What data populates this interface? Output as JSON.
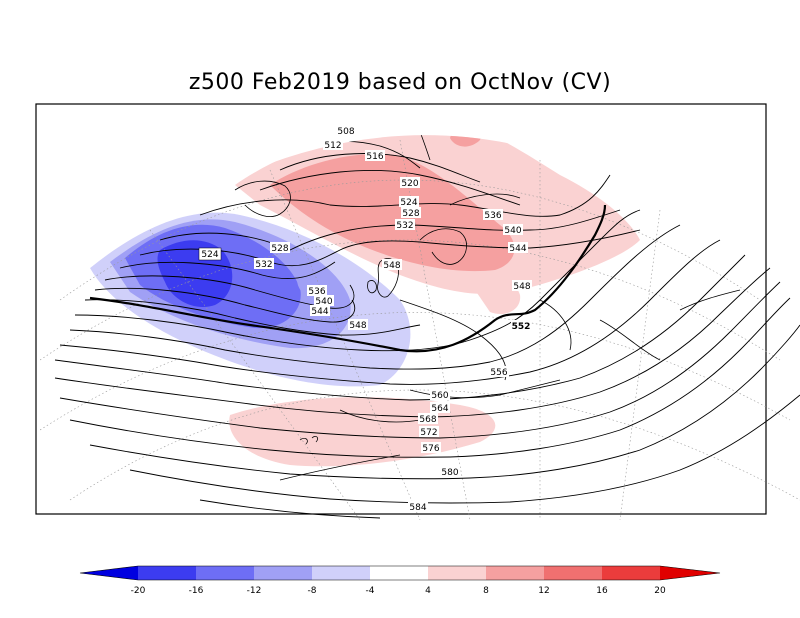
{
  "title": "z500 Feb2019 based on OctNov (CV)",
  "contour_labels": [
    "508",
    "512",
    "516",
    "520",
    "524",
    "528",
    "532",
    "536",
    "540",
    "544",
    "524",
    "528",
    "532",
    "536",
    "540",
    "544",
    "548",
    "548",
    "548",
    "552",
    "556",
    "560",
    "564",
    "568",
    "572",
    "576",
    "580",
    "584"
  ],
  "colorbar": {
    "ticks": [
      "-20",
      "-16",
      "-12",
      "-8",
      "-4",
      "4",
      "8",
      "12",
      "16",
      "20"
    ],
    "colors": [
      "#0000e0",
      "#3c3cf0",
      "#6e6ef5",
      "#a0a0f5",
      "#d0d0fa",
      "#ffffff",
      "#fad2d2",
      "#f5a0a0",
      "#f07070",
      "#eb3c3c",
      "#e00000"
    ]
  },
  "anomaly_colors": {
    "strong_negative": "#3c3cf0",
    "negative": "#6e6ef5",
    "weak_negative": "#a0a0f5",
    "slight_negative": "#d0d0fa",
    "slight_positive": "#fad2d2",
    "positive": "#f5a0a0"
  }
}
